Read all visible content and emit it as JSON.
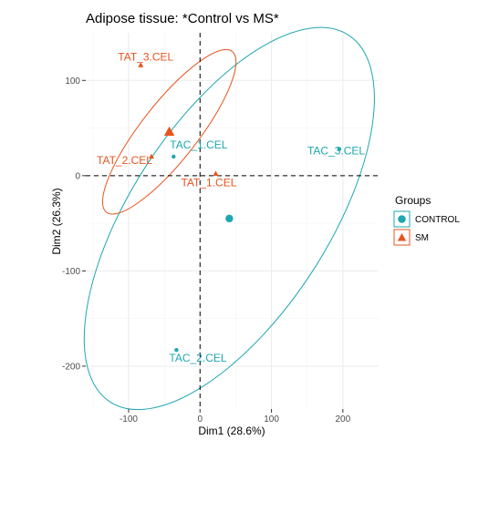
{
  "chart_data": {
    "type": "scatter",
    "title": "Adipose tissue: *Control vs MS*",
    "xlabel": "Dim1 (28.6%)",
    "ylabel": "Dim2 (26.3%)",
    "xlim": [
      -160,
      250
    ],
    "ylim": [
      -245,
      150
    ],
    "xticks": [
      -100,
      0,
      100,
      200
    ],
    "yticks": [
      100,
      0,
      -100,
      -200
    ],
    "x_tick_labels": [
      "-100",
      "0",
      "100",
      "200"
    ],
    "y_tick_labels": [
      "100",
      "0",
      "-100",
      "-200"
    ],
    "grid": true,
    "reference_lines": {
      "x": 0,
      "y": 0,
      "style": "dashed"
    },
    "legend": {
      "title": "Groups",
      "placement": "right",
      "entries": [
        {
          "label": "CONTROL",
          "color": "#1ea7b0",
          "shape": "circle"
        },
        {
          "label": "SM",
          "color": "#e8541e",
          "shape": "triangle"
        }
      ]
    },
    "series": [
      {
        "name": "CONTROL",
        "color": "#1ea7b0",
        "points": [
          {
            "label": "TAC_1.CEL",
            "x": -37,
            "y": 20
          },
          {
            "label": "TAC_2.CEL",
            "x": -33,
            "y": -183
          },
          {
            "label": "TAC_3.CEL",
            "x": 195,
            "y": 28
          }
        ],
        "centroid": {
          "x": 41,
          "y": -45
        },
        "ellipse": {
          "cx": 41,
          "cy": -45,
          "rx": 240,
          "ry": 108,
          "angle_deg": 57
        }
      },
      {
        "name": "SM",
        "color": "#e8541e",
        "points": [
          {
            "label": "TAT_1.CEL",
            "x": 22,
            "y": 2
          },
          {
            "label": "TAT_2.CEL",
            "x": -68,
            "y": 20
          },
          {
            "label": "TAT_3.CEL",
            "x": -83,
            "y": 116
          }
        ],
        "centroid": {
          "x": -43,
          "y": 46
        },
        "ellipse": {
          "cx": -43,
          "cy": 46,
          "rx": 112,
          "ry": 31,
          "angle_deg": 52
        }
      }
    ]
  }
}
